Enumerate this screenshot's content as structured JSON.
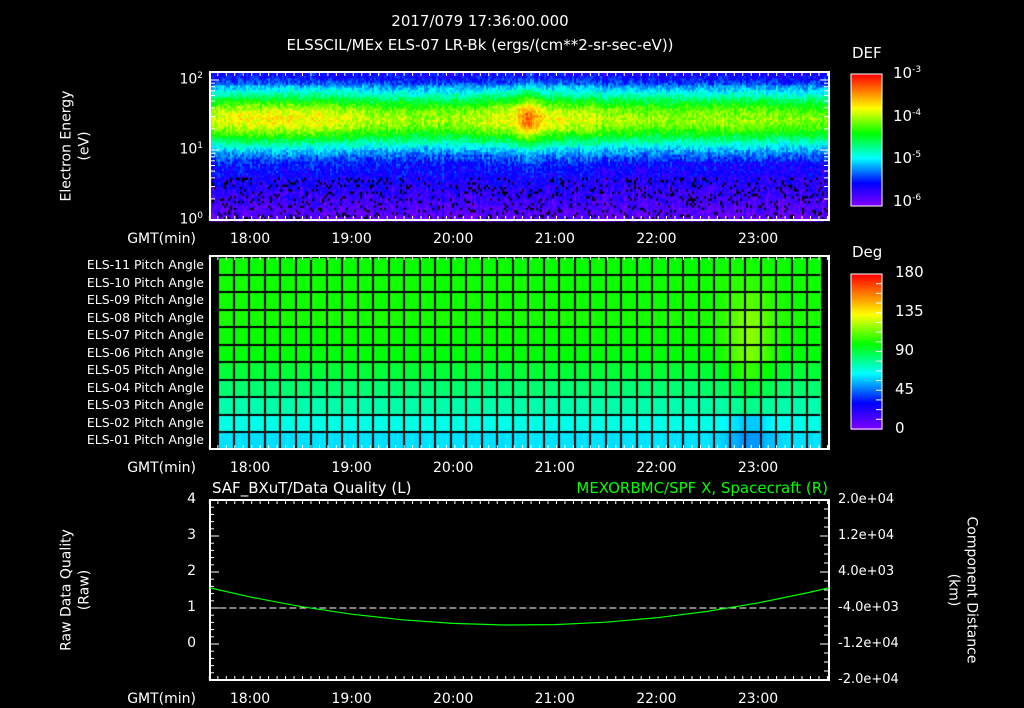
{
  "header": {
    "timestamp": "2017/079 17:36:00.000",
    "title": "ELSSCIL/MEx ELS-07 LR-Bk  (ergs/(cm**2-sr-sec-eV))"
  },
  "time_axis": {
    "label": "GMT(min)",
    "ticks": [
      "18:00",
      "19:00",
      "20:00",
      "21:00",
      "22:00",
      "23:00"
    ],
    "range_hours": [
      17.6,
      23.7
    ]
  },
  "colors": {
    "background": "#000000",
    "axes": "#ffffff",
    "spacecraft_line": "#00ff00",
    "quality_line": "#ffffff"
  },
  "chart_data": [
    {
      "type": "heatmap",
      "name": "electron-spectrogram",
      "ylabel_line1": "Electron Energy",
      "ylabel_line2": "(eV)",
      "yscale": "log",
      "ylim": [
        1,
        130
      ],
      "yticks": [
        {
          "base": "10",
          "exp": "0"
        },
        {
          "base": "10",
          "exp": "1"
        },
        {
          "base": "10",
          "exp": "2"
        }
      ],
      "colorbar": {
        "title": "DEF",
        "scale": "log",
        "range": [
          1e-06,
          0.001
        ],
        "ticks": [
          {
            "base": "10",
            "exp": "-3"
          },
          {
            "base": "10",
            "exp": "-4"
          },
          {
            "base": "10",
            "exp": "-5"
          },
          {
            "base": "10",
            "exp": "-6"
          }
        ]
      },
      "band_peak_energy_ev": 28,
      "intensity_profile": [
        {
          "t": 17.6,
          "peak_log_def": -3.9
        },
        {
          "t": 18.0,
          "peak_log_def": -3.75
        },
        {
          "t": 18.8,
          "peak_log_def": -3.8
        },
        {
          "t": 19.3,
          "peak_log_def": -4.0
        },
        {
          "t": 20.0,
          "peak_log_def": -4.0
        },
        {
          "t": 20.55,
          "peak_log_def": -3.8
        },
        {
          "t": 20.72,
          "peak_log_def": -3.3
        },
        {
          "t": 20.9,
          "peak_log_def": -3.8
        },
        {
          "t": 21.3,
          "peak_log_def": -3.9
        },
        {
          "t": 22.0,
          "peak_log_def": -4.05
        },
        {
          "t": 23.0,
          "peak_log_def": -4.0
        },
        {
          "t": 23.7,
          "peak_log_def": -4.1
        }
      ]
    },
    {
      "type": "heatmap",
      "name": "pitch-angle",
      "rows": [
        {
          "label": "ELS-11 Pitch Angle",
          "deg": 100
        },
        {
          "label": "ELS-10 Pitch Angle",
          "deg": 101
        },
        {
          "label": "ELS-09 Pitch Angle",
          "deg": 101
        },
        {
          "label": "ELS-08 Pitch Angle",
          "deg": 102
        },
        {
          "label": "ELS-07 Pitch Angle",
          "deg": 100
        },
        {
          "label": "ELS-06 Pitch Angle",
          "deg": 98
        },
        {
          "label": "ELS-05 Pitch Angle",
          "deg": 92
        },
        {
          "label": "ELS-04 Pitch Angle",
          "deg": 84
        },
        {
          "label": "ELS-03 Pitch Angle",
          "deg": 76
        },
        {
          "label": "ELS-02 Pitch Angle",
          "deg": 68
        },
        {
          "label": "ELS-01 Pitch Angle",
          "deg": 61
        }
      ],
      "enhancement": {
        "center_t": 22.9,
        "extra_deg": 18
      },
      "colorbar": {
        "title": "Deg",
        "range": [
          0,
          180
        ],
        "ticks": [
          "180",
          "135",
          "90",
          "45",
          "0"
        ]
      }
    },
    {
      "type": "line",
      "left_title": "SAF_BXuT/Data Quality (L)",
      "right_title": "MEXORBMC/SPF X, Spacecraft (R)",
      "left_ylabel_line1": "Raw Data Quality",
      "left_ylabel_line2": "(Raw)",
      "left_ylim": [
        -1,
        4
      ],
      "left_yticks": [
        "4",
        "3",
        "2",
        "1",
        "0"
      ],
      "right_ylabel_line1": "Component Distance",
      "right_ylabel_line2": "(km)",
      "right_ylim": [
        -20000,
        20000
      ],
      "right_yticks": [
        "2.0e+04",
        "1.2e+04",
        "4.0e+03",
        "-4.0e+03",
        "-1.2e+04",
        "-2.0e+04"
      ],
      "series": [
        {
          "name": "Data Quality",
          "axis": "left",
          "x": [
            17.6,
            23.7
          ],
          "y": [
            1,
            1
          ]
        },
        {
          "name": "MEXORBMC/SPF X, Spacecraft",
          "axis": "right",
          "x": [
            17.6,
            18.0,
            18.5,
            19.0,
            19.5,
            20.0,
            20.5,
            21.0,
            21.5,
            22.0,
            22.5,
            23.0,
            23.5,
            23.7
          ],
          "y": [
            500,
            -1538,
            -3679,
            -5373,
            -6620,
            -7423,
            -7780,
            -7691,
            -7156,
            -6174,
            -4747,
            -2874,
            -555,
            496
          ]
        }
      ]
    }
  ]
}
